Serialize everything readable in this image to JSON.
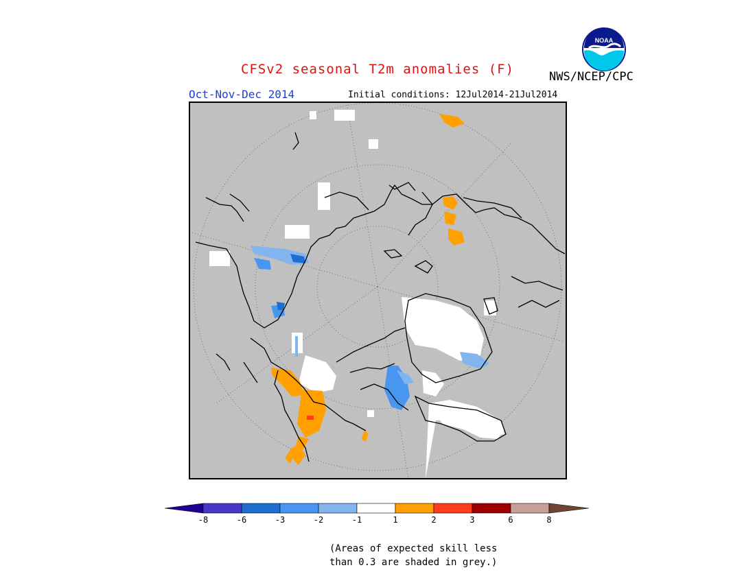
{
  "header": {
    "title": "CFSv2 seasonal T2m anomalies (F)",
    "agency": "NWS/NCEP/CPC",
    "logo_text": "NOAA",
    "season": "Oct-Nov-Dec 2014",
    "initial_conditions": "Initial conditions: 12Jul2014-21Jul2014"
  },
  "colors": {
    "ocean": "#c0c0c0",
    "frame": "#000000",
    "neutral": "#ffffff",
    "warm_1_2": "#ffa000",
    "warm_2_3": "#ff3c1e",
    "cold_m2_m1": "#82b4f0",
    "cold_m3_m2": "#4896f0",
    "cold_m6_m3": "#1e6ed2"
  },
  "colorbar": {
    "bins": [
      {
        "color": "#200090"
      },
      {
        "color": "#4838c8"
      },
      {
        "color": "#1e6ed2"
      },
      {
        "color": "#4896f0"
      },
      {
        "color": "#82b4f0"
      },
      {
        "color": "#ffffff"
      },
      {
        "color": "#ffa000"
      },
      {
        "color": "#ff3c1e"
      },
      {
        "color": "#a00000"
      },
      {
        "color": "#c8a096"
      },
      {
        "color": "#6e4632"
      }
    ],
    "tick_labels": [
      "-8",
      "-6",
      "-3",
      "-2",
      "-1",
      "1",
      "2",
      "3",
      "6",
      "8"
    ]
  },
  "footnote": {
    "line1": "(Areas of expected skill less",
    "line2": "than 0.3 are shaded in grey.)"
  }
}
